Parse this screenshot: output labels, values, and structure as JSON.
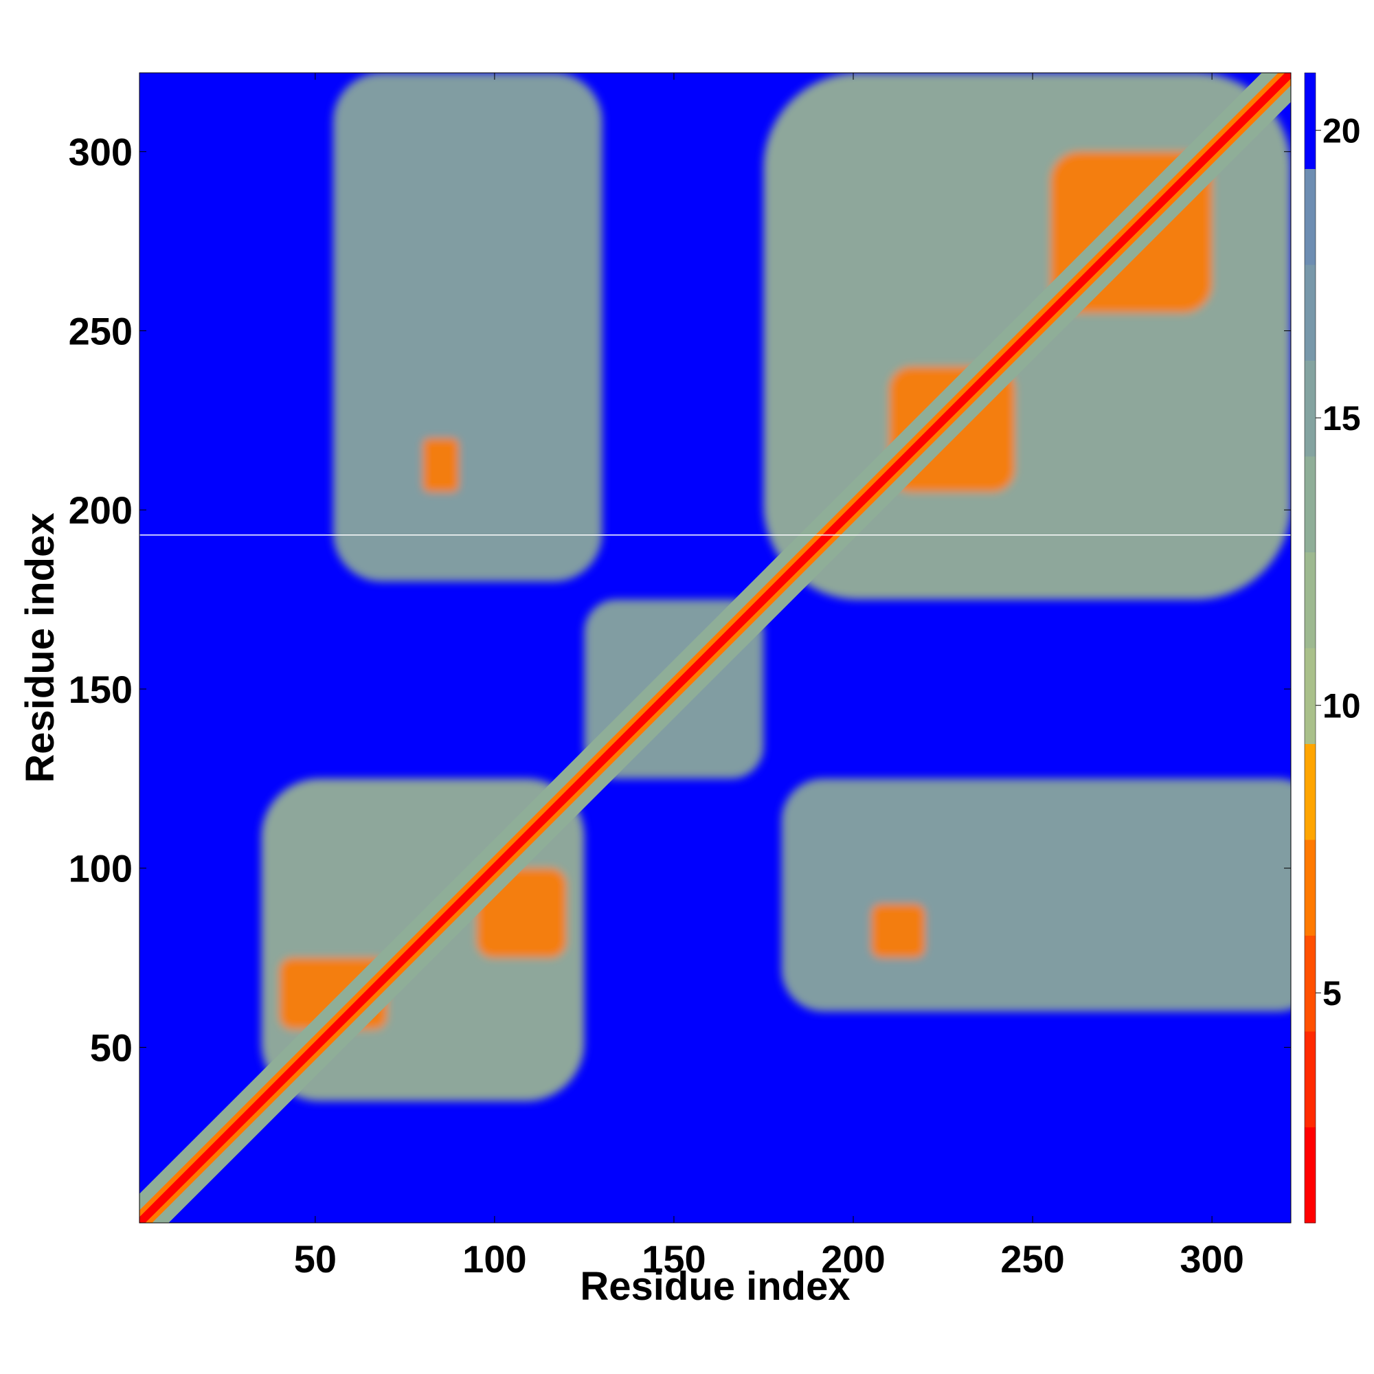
{
  "chart_data": {
    "type": "heatmap",
    "title": "",
    "xlabel": "Residue index",
    "ylabel": "Residue index",
    "xlim": [
      1,
      322
    ],
    "ylim": [
      1,
      322
    ],
    "xticks": [
      50,
      100,
      150,
      200,
      250,
      300
    ],
    "yticks": [
      50,
      100,
      150,
      200,
      250,
      300
    ],
    "xtick_labels": [
      "50",
      "100",
      "150",
      "200",
      "250",
      "300"
    ],
    "ytick_labels": [
      "50",
      "100",
      "150",
      "200",
      "250",
      "300"
    ],
    "colorbar": {
      "range": [
        1,
        21
      ],
      "ticks": [
        5,
        10,
        15,
        20
      ],
      "tick_labels": [
        "5",
        "10",
        "15",
        "20"
      ],
      "colors": [
        "#ff0000",
        "#ff2a00",
        "#ff5000",
        "#ff7a00",
        "#ffa500",
        "#a9c08a",
        "#9db990",
        "#8fae98",
        "#84a3a0",
        "#7898aa",
        "#6d8db2",
        "#0000ff"
      ]
    },
    "background_value": 21,
    "diagonal": {
      "from": 1,
      "to": 322,
      "core_value": 1
    },
    "horizontal_line_at": 193,
    "contact_regions": [
      {
        "x": [
          35,
          125
        ],
        "y": [
          35,
          125
        ],
        "value": 12
      },
      {
        "x": [
          40,
          70
        ],
        "y": [
          55,
          75
        ],
        "value": 6
      },
      {
        "x": [
          95,
          120
        ],
        "y": [
          75,
          100
        ],
        "value": 6
      },
      {
        "x": [
          125,
          175
        ],
        "y": [
          125,
          175
        ],
        "value": 13
      },
      {
        "x": [
          175,
          322
        ],
        "y": [
          175,
          322
        ],
        "value": 12
      },
      {
        "x": [
          210,
          245
        ],
        "y": [
          205,
          240
        ],
        "value": 6
      },
      {
        "x": [
          255,
          300
        ],
        "y": [
          255,
          300
        ],
        "value": 6
      },
      {
        "x": [
          55,
          130
        ],
        "y": [
          180,
          322
        ],
        "value": 13
      },
      {
        "x": [
          80,
          90
        ],
        "y": [
          205,
          220
        ],
        "value": 6
      },
      {
        "x": [
          180,
          330
        ],
        "y": [
          60,
          125
        ],
        "value": 13
      },
      {
        "x": [
          205,
          220
        ],
        "y": [
          75,
          90
        ],
        "value": 6
      }
    ]
  }
}
